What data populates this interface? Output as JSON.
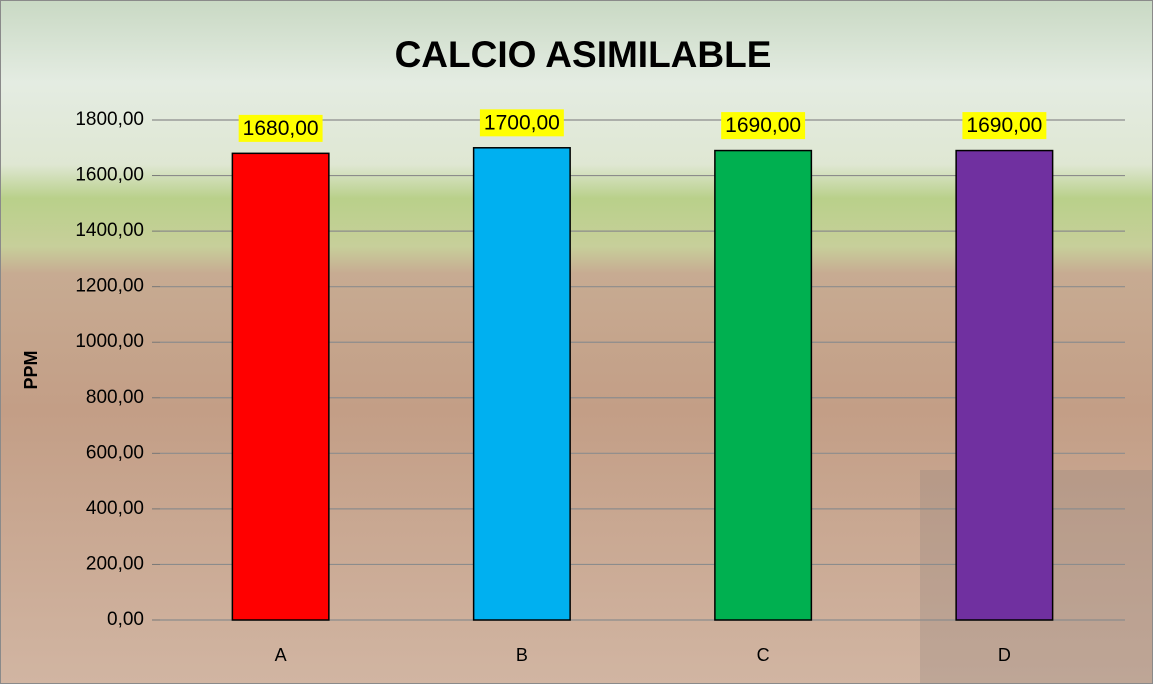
{
  "chart_data": {
    "type": "bar",
    "title": "CALCIO ASIMILABLE",
    "y_label": "PPM",
    "categories": [
      "A",
      "B",
      "C",
      "D"
    ],
    "values": [
      1680,
      1700,
      1690,
      1690
    ],
    "value_labels": [
      "1680,00",
      "1700,00",
      "1690,00",
      "1690,00"
    ],
    "colors": [
      "#ff0000",
      "#00b0f0",
      "#00b050",
      "#7030a0"
    ],
    "ylim": [
      0,
      1800
    ],
    "yticks": [
      {
        "value": 0,
        "label": "0,00"
      },
      {
        "value": 200,
        "label": "200,00"
      },
      {
        "value": 400,
        "label": "400,00"
      },
      {
        "value": 600,
        "label": "600,00"
      },
      {
        "value": 800,
        "label": "800,00"
      },
      {
        "value": 1000,
        "label": "1000,00"
      },
      {
        "value": 1200,
        "label": "1200,00"
      },
      {
        "value": 1400,
        "label": "1400,00"
      },
      {
        "value": 1600,
        "label": "1600,00"
      },
      {
        "value": 1800,
        "label": "1800,00"
      }
    ],
    "grid": true
  }
}
